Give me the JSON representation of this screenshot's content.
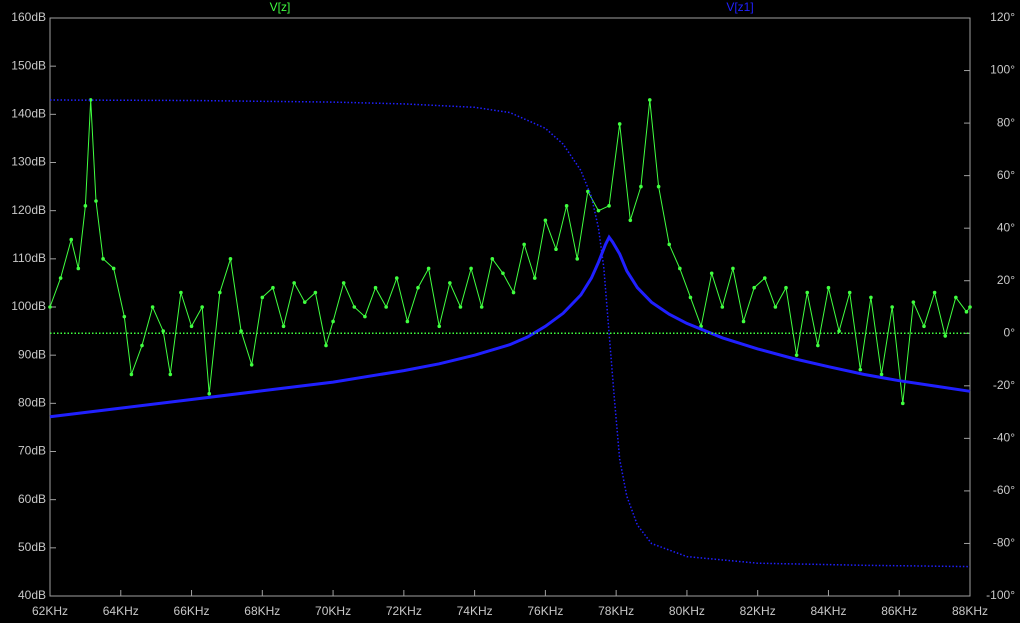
{
  "chart_data": {
    "type": "line",
    "xlim": [
      62,
      88
    ],
    "xticks": [
      {
        "value": 62,
        "label": "62KHz"
      },
      {
        "value": 64,
        "label": "64KHz"
      },
      {
        "value": 66,
        "label": "66KHz"
      },
      {
        "value": 68,
        "label": "68KHz"
      },
      {
        "value": 70,
        "label": "70KHz"
      },
      {
        "value": 72,
        "label": "72KHz"
      },
      {
        "value": 74,
        "label": "74KHz"
      },
      {
        "value": 76,
        "label": "76KHz"
      },
      {
        "value": 78,
        "label": "78KHz"
      },
      {
        "value": 80,
        "label": "80KHz"
      },
      {
        "value": 82,
        "label": "82KHz"
      },
      {
        "value": 84,
        "label": "84KHz"
      },
      {
        "value": 86,
        "label": "86KHz"
      },
      {
        "value": 88,
        "label": "88KHz"
      }
    ],
    "ylim": [
      40,
      160
    ],
    "yticks": [
      {
        "value": 40,
        "label": "40dB"
      },
      {
        "value": 50,
        "label": "50dB"
      },
      {
        "value": 60,
        "label": "60dB"
      },
      {
        "value": 70,
        "label": "70dB"
      },
      {
        "value": 80,
        "label": "80dB"
      },
      {
        "value": 90,
        "label": "90dB"
      },
      {
        "value": 100,
        "label": "100dB"
      },
      {
        "value": 110,
        "label": "110dB"
      },
      {
        "value": 120,
        "label": "120dB"
      },
      {
        "value": 130,
        "label": "130dB"
      },
      {
        "value": 140,
        "label": "140dB"
      },
      {
        "value": 150,
        "label": "150dB"
      },
      {
        "value": 160,
        "label": "160dB"
      }
    ],
    "y2lim": [
      -100,
      120
    ],
    "y2ticks": [
      {
        "value": -100,
        "label": "-100°"
      },
      {
        "value": -80,
        "label": "-80°"
      },
      {
        "value": -60,
        "label": "-60°"
      },
      {
        "value": -40,
        "label": "-40°"
      },
      {
        "value": -20,
        "label": "-20°"
      },
      {
        "value": 0,
        "label": "0°"
      },
      {
        "value": 20,
        "label": "20°"
      },
      {
        "value": 40,
        "label": "40°"
      },
      {
        "value": 60,
        "label": "60°"
      },
      {
        "value": 80,
        "label": "80°"
      },
      {
        "value": 100,
        "label": "100°"
      },
      {
        "value": 120,
        "label": "120°"
      }
    ],
    "series": [
      {
        "name": "V[z]",
        "color": "#40ff40",
        "markers": true,
        "x": [
          62.0,
          62.3,
          62.6,
          62.8,
          63.0,
          63.15,
          63.3,
          63.5,
          63.8,
          64.1,
          64.3,
          64.6,
          64.9,
          65.2,
          65.4,
          65.7,
          66.0,
          66.3,
          66.5,
          66.8,
          67.1,
          67.4,
          67.7,
          68.0,
          68.3,
          68.6,
          68.9,
          69.2,
          69.5,
          69.8,
          70.0,
          70.3,
          70.6,
          70.9,
          71.2,
          71.5,
          71.8,
          72.1,
          72.4,
          72.7,
          73.0,
          73.3,
          73.6,
          73.9,
          74.2,
          74.5,
          74.8,
          75.1,
          75.4,
          75.7,
          76.0,
          76.3,
          76.6,
          76.9,
          77.2,
          77.5,
          77.8,
          78.1,
          78.4,
          78.7,
          78.95,
          79.2,
          79.5,
          79.8,
          80.1,
          80.4,
          80.7,
          81.0,
          81.3,
          81.6,
          81.9,
          82.2,
          82.5,
          82.8,
          83.1,
          83.4,
          83.7,
          84.0,
          84.3,
          84.6,
          84.9,
          85.2,
          85.5,
          85.8,
          86.1,
          86.4,
          86.7,
          87.0,
          87.3,
          87.6,
          87.9,
          88.0
        ],
        "values": [
          100,
          106,
          114,
          108,
          121,
          143,
          122,
          110,
          108,
          98,
          86,
          92,
          100,
          95,
          86,
          103,
          96,
          100,
          82,
          103,
          110,
          95,
          88,
          102,
          104,
          96,
          105,
          101,
          103,
          92,
          97,
          105,
          100,
          98,
          104,
          100,
          106,
          97,
          104,
          108,
          96,
          105,
          100,
          108,
          100,
          110,
          107,
          103,
          113,
          106,
          118,
          112,
          121,
          110,
          124,
          120,
          121,
          138,
          118,
          125,
          143,
          125,
          113,
          108,
          102,
          96,
          107,
          100,
          108,
          97,
          104,
          106,
          100,
          104,
          90,
          103,
          92,
          104,
          95,
          103,
          87,
          102,
          86,
          100,
          80,
          101,
          96,
          103,
          94,
          102,
          99,
          100
        ]
      },
      {
        "name": "V[z1]",
        "color": "#2020ff",
        "markers": false,
        "x": [
          62,
          64,
          66,
          68,
          70,
          72,
          73,
          74,
          75,
          75.5,
          76,
          76.5,
          77,
          77.3,
          77.5,
          77.7,
          77.8,
          77.9,
          78.1,
          78.3,
          78.6,
          79,
          79.5,
          80,
          81,
          82,
          83,
          84,
          85,
          86,
          87,
          88
        ],
        "values": [
          77.2,
          79,
          80.8,
          82.6,
          84.4,
          86.8,
          88.2,
          90,
          92.2,
          93.8,
          96,
          98.7,
          102.5,
          106,
          109.3,
          113,
          114.5,
          113.5,
          111,
          107.5,
          104,
          101,
          98.5,
          96.6,
          93.6,
          91.3,
          89.3,
          87.6,
          86,
          84.7,
          83.6,
          82.5
        ]
      },
      {
        "color": "#40ff40",
        "axis": "y2",
        "dashed": true,
        "x": [
          62,
          88
        ],
        "values": [
          0,
          0
        ]
      },
      {
        "color": "#2020ff",
        "axis": "y2",
        "dashed": true,
        "x": [
          62,
          66,
          70,
          72,
          74,
          75,
          76,
          76.5,
          77,
          77.3,
          77.5,
          77.65,
          77.8,
          77.95,
          78.1,
          78.3,
          78.6,
          79,
          80,
          82,
          85,
          88
        ],
        "values": [
          88.8,
          88.6,
          88,
          87.3,
          86,
          84,
          78,
          72,
          62,
          52,
          40,
          25,
          0,
          -25,
          -48,
          -62,
          -73,
          -80,
          -85,
          -87.5,
          -88.3,
          -88.8
        ]
      }
    ]
  }
}
